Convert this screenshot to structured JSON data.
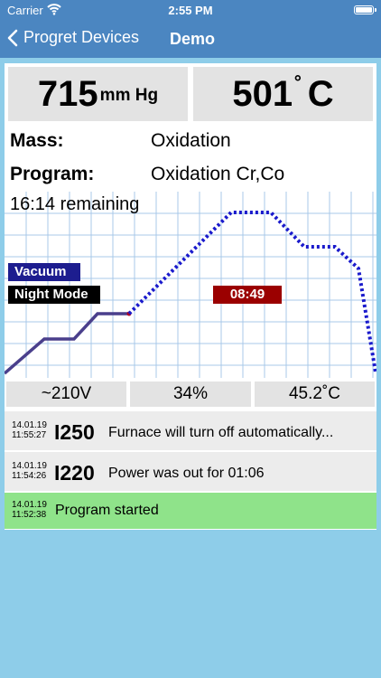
{
  "status_bar": {
    "carrier": "Carrier",
    "time": "2:55 PM"
  },
  "nav": {
    "back_label": "Progret Devices",
    "title": "Demo"
  },
  "readouts": {
    "pressure_value": "715",
    "pressure_unit": "mm Hg",
    "temperature_value": "501",
    "temperature_degree": "˚",
    "temperature_unit": "C"
  },
  "info": {
    "mass_label": "Mass:",
    "mass_value": "Oxidation",
    "program_label": "Program:",
    "program_value": "Oxidation Cr,Co"
  },
  "chart": {
    "remaining": "16:14 remaining",
    "vacuum_tag": "Vacuum",
    "night_mode_tag": "Night Mode",
    "elapsed_timer": "08:49"
  },
  "stats": {
    "voltage": "~210V",
    "percent": "34%",
    "ambient_temp": "45.2˚C"
  },
  "log": [
    {
      "date": "14.01.19",
      "time": "11:55:27",
      "code": "I250",
      "message": "Furnace will turn off automatically..."
    },
    {
      "date": "14.01.19",
      "time": "11:54:26",
      "code": "I220",
      "message": "Power was out for 01:06"
    },
    {
      "date": "14.01.19",
      "time": "11:52:38",
      "code": "",
      "message": "Program started"
    }
  ],
  "colors": {
    "bar": "#4b86c1",
    "background": "#8ecde9",
    "done_line": "#4a3f8c",
    "planned_line": "#1a1acc",
    "grid": "#a9c8e8",
    "vacuum": "#1d1d8f",
    "timer": "#9b0000",
    "started": "#8fe38a"
  },
  "icons": {
    "back": "chevron-left-icon",
    "wifi": "wifi-icon",
    "battery": "battery-icon"
  }
}
